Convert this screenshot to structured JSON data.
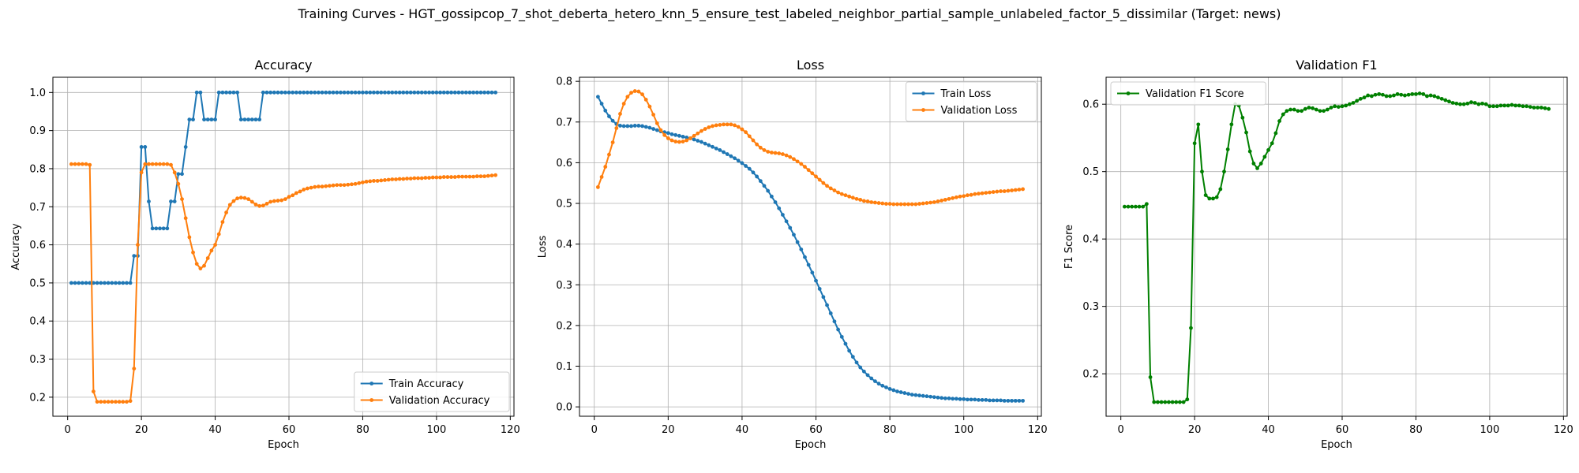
{
  "figure": {
    "title": "Training Curves - HGT_gossipcop_7_shot_deberta_hetero_knn_5_ensure_test_labeled_neighbor_partial_sample_unlabeled_factor_5_dissimilar (Target: news)"
  },
  "chart_data": [
    {
      "type": "line",
      "title": "Accuracy",
      "xlabel": "Epoch",
      "ylabel": "Accuracy",
      "xlim": [
        -4,
        121
      ],
      "ylim": [
        0.15,
        1.04
      ],
      "xticks": [
        0,
        20,
        40,
        60,
        80,
        100,
        120
      ],
      "yticks": [
        0.2,
        0.3,
        0.4,
        0.5,
        0.6,
        0.7,
        0.8,
        0.9,
        1.0
      ],
      "grid": true,
      "legend_position": "bottom-right",
      "series": [
        {
          "name": "Train Accuracy",
          "color": "#1f77b4",
          "x_start": 1,
          "values": [
            0.5,
            0.5,
            0.5,
            0.5,
            0.5,
            0.5,
            0.5,
            0.5,
            0.5,
            0.5,
            0.5,
            0.5,
            0.5,
            0.5,
            0.5,
            0.5,
            0.5,
            0.571,
            0.571,
            0.857,
            0.857,
            0.714,
            0.643,
            0.643,
            0.643,
            0.643,
            0.643,
            0.714,
            0.714,
            0.786,
            0.786,
            0.857,
            0.929,
            0.929,
            1.0,
            1.0,
            0.929,
            0.929,
            0.929,
            0.929,
            1.0,
            1.0,
            1.0,
            1.0,
            1.0,
            1.0,
            0.929,
            0.929,
            0.929,
            0.929,
            0.929,
            0.929,
            1.0,
            1.0,
            1.0,
            1.0,
            1.0,
            1.0,
            1.0,
            1.0,
            1.0,
            1.0,
            1.0,
            1.0,
            1.0,
            1.0,
            1.0,
            1.0,
            1.0,
            1.0,
            1.0,
            1.0,
            1.0,
            1.0,
            1.0,
            1.0,
            1.0,
            1.0,
            1.0,
            1.0,
            1.0,
            1.0,
            1.0,
            1.0,
            1.0,
            1.0,
            1.0,
            1.0,
            1.0,
            1.0,
            1.0,
            1.0,
            1.0,
            1.0,
            1.0,
            1.0,
            1.0,
            1.0,
            1.0,
            1.0,
            1.0,
            1.0,
            1.0,
            1.0,
            1.0,
            1.0,
            1.0,
            1.0,
            1.0,
            1.0,
            1.0,
            1.0,
            1.0,
            1.0,
            1.0,
            1.0
          ]
        },
        {
          "name": "Validation Accuracy",
          "color": "#ff7f0e",
          "x_start": 1,
          "values": [
            0.812,
            0.812,
            0.812,
            0.812,
            0.812,
            0.81,
            0.215,
            0.188,
            0.188,
            0.188,
            0.188,
            0.188,
            0.188,
            0.188,
            0.188,
            0.188,
            0.19,
            0.275,
            0.6,
            0.79,
            0.812,
            0.812,
            0.812,
            0.812,
            0.812,
            0.812,
            0.812,
            0.81,
            0.79,
            0.76,
            0.72,
            0.67,
            0.62,
            0.58,
            0.55,
            0.538,
            0.545,
            0.565,
            0.585,
            0.6,
            0.628,
            0.66,
            0.685,
            0.705,
            0.715,
            0.722,
            0.724,
            0.723,
            0.72,
            0.713,
            0.706,
            0.702,
            0.703,
            0.708,
            0.713,
            0.715,
            0.716,
            0.717,
            0.72,
            0.726,
            0.73,
            0.736,
            0.74,
            0.745,
            0.748,
            0.75,
            0.752,
            0.753,
            0.753,
            0.754,
            0.755,
            0.756,
            0.757,
            0.757,
            0.757,
            0.758,
            0.759,
            0.76,
            0.762,
            0.764,
            0.766,
            0.767,
            0.768,
            0.768,
            0.769,
            0.77,
            0.771,
            0.772,
            0.772,
            0.773,
            0.773,
            0.774,
            0.774,
            0.775,
            0.775,
            0.775,
            0.776,
            0.776,
            0.777,
            0.777,
            0.777,
            0.778,
            0.778,
            0.778,
            0.778,
            0.779,
            0.779,
            0.779,
            0.779,
            0.779,
            0.78,
            0.78,
            0.78,
            0.781,
            0.782,
            0.783
          ]
        }
      ]
    },
    {
      "type": "line",
      "title": "Loss",
      "xlabel": "Epoch",
      "ylabel": "Loss",
      "xlim": [
        -4,
        121
      ],
      "ylim": [
        -0.023,
        0.81
      ],
      "xticks": [
        0,
        20,
        40,
        60,
        80,
        100,
        120
      ],
      "yticks": [
        0.0,
        0.1,
        0.2,
        0.3,
        0.4,
        0.5,
        0.6,
        0.7,
        0.8
      ],
      "grid": true,
      "legend_position": "top-right",
      "series": [
        {
          "name": "Train Loss",
          "color": "#1f77b4",
          "x_start": 1,
          "values": [
            0.762,
            0.745,
            0.728,
            0.714,
            0.703,
            0.695,
            0.691,
            0.69,
            0.69,
            0.69,
            0.691,
            0.691,
            0.69,
            0.688,
            0.686,
            0.683,
            0.68,
            0.677,
            0.675,
            0.673,
            0.67,
            0.668,
            0.666,
            0.664,
            0.662,
            0.66,
            0.657,
            0.654,
            0.651,
            0.647,
            0.643,
            0.639,
            0.635,
            0.631,
            0.626,
            0.621,
            0.616,
            0.611,
            0.605,
            0.599,
            0.592,
            0.585,
            0.576,
            0.566,
            0.555,
            0.543,
            0.531,
            0.517,
            0.503,
            0.488,
            0.472,
            0.456,
            0.44,
            0.423,
            0.405,
            0.387,
            0.368,
            0.349,
            0.33,
            0.31,
            0.29,
            0.27,
            0.25,
            0.23,
            0.21,
            0.19,
            0.172,
            0.155,
            0.138,
            0.123,
            0.109,
            0.097,
            0.087,
            0.078,
            0.07,
            0.063,
            0.057,
            0.052,
            0.048,
            0.044,
            0.041,
            0.038,
            0.036,
            0.034,
            0.032,
            0.03,
            0.029,
            0.028,
            0.027,
            0.026,
            0.025,
            0.024,
            0.023,
            0.022,
            0.021,
            0.021,
            0.02,
            0.02,
            0.019,
            0.019,
            0.018,
            0.018,
            0.018,
            0.017,
            0.017,
            0.017,
            0.016,
            0.016,
            0.016,
            0.016,
            0.015,
            0.015,
            0.015,
            0.015,
            0.015,
            0.015
          ]
        },
        {
          "name": "Validation Loss",
          "color": "#ff7f0e",
          "x_start": 1,
          "values": [
            0.54,
            0.565,
            0.59,
            0.62,
            0.65,
            0.685,
            0.72,
            0.745,
            0.762,
            0.772,
            0.776,
            0.775,
            0.768,
            0.755,
            0.738,
            0.718,
            0.697,
            0.68,
            0.668,
            0.66,
            0.655,
            0.652,
            0.651,
            0.652,
            0.655,
            0.66,
            0.666,
            0.672,
            0.678,
            0.683,
            0.687,
            0.69,
            0.692,
            0.693,
            0.694,
            0.694,
            0.694,
            0.692,
            0.688,
            0.682,
            0.675,
            0.665,
            0.655,
            0.645,
            0.637,
            0.631,
            0.627,
            0.625,
            0.624,
            0.623,
            0.621,
            0.618,
            0.614,
            0.609,
            0.603,
            0.597,
            0.59,
            0.582,
            0.574,
            0.566,
            0.558,
            0.55,
            0.543,
            0.537,
            0.532,
            0.527,
            0.523,
            0.52,
            0.517,
            0.514,
            0.511,
            0.509,
            0.506,
            0.505,
            0.503,
            0.502,
            0.501,
            0.5,
            0.499,
            0.499,
            0.498,
            0.498,
            0.498,
            0.498,
            0.498,
            0.498,
            0.498,
            0.499,
            0.5,
            0.501,
            0.502,
            0.503,
            0.505,
            0.507,
            0.509,
            0.511,
            0.513,
            0.515,
            0.517,
            0.518,
            0.52,
            0.521,
            0.523,
            0.524,
            0.525,
            0.526,
            0.527,
            0.528,
            0.529,
            0.53,
            0.53,
            0.531,
            0.532,
            0.533,
            0.534,
            0.535
          ]
        }
      ]
    },
    {
      "type": "line",
      "title": "Validation F1",
      "xlabel": "Epoch",
      "ylabel": "F1 Score",
      "xlim": [
        -4,
        121
      ],
      "ylim": [
        0.137,
        0.64
      ],
      "xticks": [
        0,
        20,
        40,
        60,
        80,
        100,
        120
      ],
      "yticks": [
        0.2,
        0.3,
        0.4,
        0.5,
        0.6
      ],
      "grid": true,
      "legend_position": "top-left",
      "series": [
        {
          "name": "Validation F1 Score",
          "color": "#008000",
          "x_start": 1,
          "values": [
            0.448,
            0.448,
            0.448,
            0.448,
            0.448,
            0.448,
            0.452,
            0.195,
            0.158,
            0.158,
            0.158,
            0.158,
            0.158,
            0.158,
            0.158,
            0.158,
            0.158,
            0.162,
            0.268,
            0.542,
            0.57,
            0.5,
            0.465,
            0.46,
            0.46,
            0.462,
            0.474,
            0.5,
            0.533,
            0.57,
            0.6,
            0.598,
            0.58,
            0.558,
            0.53,
            0.512,
            0.505,
            0.512,
            0.522,
            0.532,
            0.542,
            0.557,
            0.575,
            0.585,
            0.59,
            0.592,
            0.592,
            0.59,
            0.59,
            0.593,
            0.595,
            0.594,
            0.592,
            0.59,
            0.59,
            0.592,
            0.595,
            0.597,
            0.596,
            0.597,
            0.598,
            0.6,
            0.602,
            0.605,
            0.608,
            0.61,
            0.613,
            0.612,
            0.614,
            0.615,
            0.614,
            0.612,
            0.612,
            0.613,
            0.615,
            0.614,
            0.613,
            0.614,
            0.615,
            0.615,
            0.616,
            0.615,
            0.612,
            0.613,
            0.612,
            0.61,
            0.608,
            0.606,
            0.604,
            0.602,
            0.601,
            0.6,
            0.6,
            0.601,
            0.603,
            0.602,
            0.6,
            0.601,
            0.6,
            0.597,
            0.597,
            0.597,
            0.598,
            0.598,
            0.598,
            0.599,
            0.598,
            0.598,
            0.597,
            0.597,
            0.596,
            0.595,
            0.595,
            0.595,
            0.594,
            0.593
          ]
        }
      ]
    }
  ]
}
